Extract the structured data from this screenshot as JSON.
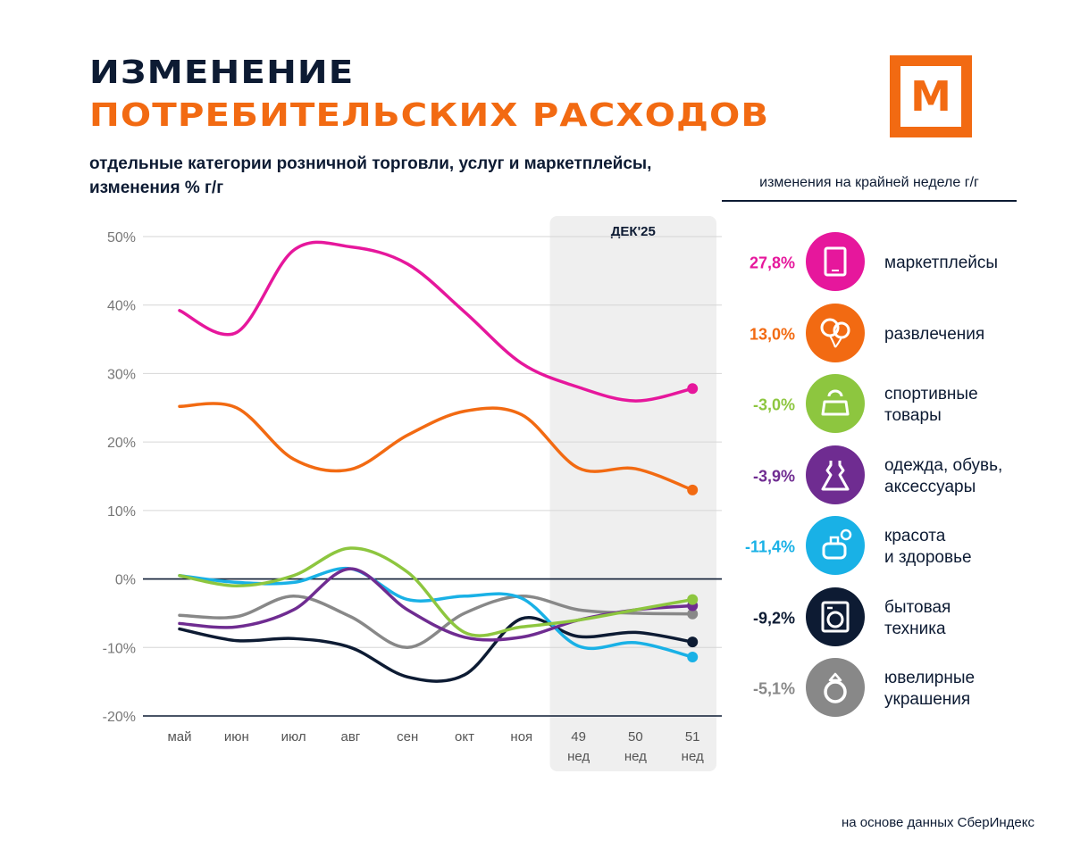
{
  "title_line1": "ИЗМЕНЕНИЕ",
  "title_line2": "ПОТРЕБИТЕЛЬСКИХ РАСХОДОВ",
  "subtitle": "отдельные категории розничной торговли, услуг  и маркетплейсы, изменения % г/г",
  "logo_letter": "М",
  "legend_header": "изменения на крайней неделе г/г",
  "source": "на основе данных СберИндекс",
  "colors": {
    "navy": "#0d1b33",
    "orange": "#f26a12"
  },
  "chart_data": {
    "type": "line",
    "highlight_label": "ДЕК'25",
    "categories": [
      "май",
      "июн",
      "июл",
      "авг",
      "сен",
      "окт",
      "ноя",
      "49\nнед",
      "50\nнед",
      "51\nнед"
    ],
    "ylim": [
      -20,
      50
    ],
    "yticks": [
      "50%",
      "40%",
      "30%",
      "20%",
      "10%",
      "0%",
      "-10%",
      "-20%"
    ],
    "series": [
      {
        "name": "маркетплейсы",
        "color": "#e6179c",
        "icon": "tablet-icon",
        "last_label": "27,8%",
        "values": [
          39.2,
          36,
          48,
          48.5,
          46,
          39,
          31.5,
          28,
          26,
          27.8
        ]
      },
      {
        "name": "развлечения",
        "color": "#f26a12",
        "icon": "balloons-icon",
        "last_label": "13,0%",
        "values": [
          25.2,
          25,
          17.5,
          16,
          21,
          24.5,
          24,
          16.2,
          16.1,
          13.0
        ]
      },
      {
        "name": "спортивные\nтовары",
        "color": "#8dc63f",
        "icon": "kettlebell-icon",
        "last_label": "-3,0%",
        "values": [
          0.5,
          -1,
          0.5,
          4.5,
          1,
          -7.8,
          -7,
          -6,
          -4.5,
          -3.0
        ]
      },
      {
        "name": "одежда, обувь,\nаксессуары",
        "color": "#6f2c91",
        "icon": "dress-icon",
        "last_label": "-3,9%",
        "values": [
          -6.5,
          -7,
          -4.5,
          1.5,
          -4.5,
          -8.5,
          -8.5,
          -6,
          -4.5,
          -3.9
        ]
      },
      {
        "name": "красота\nи здоровье",
        "color": "#19b1e6",
        "icon": "perfume-icon",
        "last_label": "-11,4%",
        "values": [
          0.5,
          -0.5,
          -0.5,
          1.5,
          -3,
          -2.5,
          -2.8,
          -9.8,
          -9.3,
          -11.4
        ]
      },
      {
        "name": "бытовая\nтехника",
        "color": "#0d1b33",
        "icon": "washing-machine-icon",
        "last_label": "-9,2%",
        "values": [
          -7.3,
          -9,
          -8.7,
          -10,
          -14.3,
          -14,
          -5.8,
          -8.4,
          -7.8,
          -9.2
        ]
      },
      {
        "name": "ювелирные\nукрашения",
        "color": "#888888",
        "icon": "ring-icon",
        "last_label": "-5,1%",
        "values": [
          -5.3,
          -5.5,
          -2.5,
          -5.5,
          -10,
          -5,
          -2.5,
          -4.5,
          -5,
          -5.1
        ]
      }
    ]
  }
}
